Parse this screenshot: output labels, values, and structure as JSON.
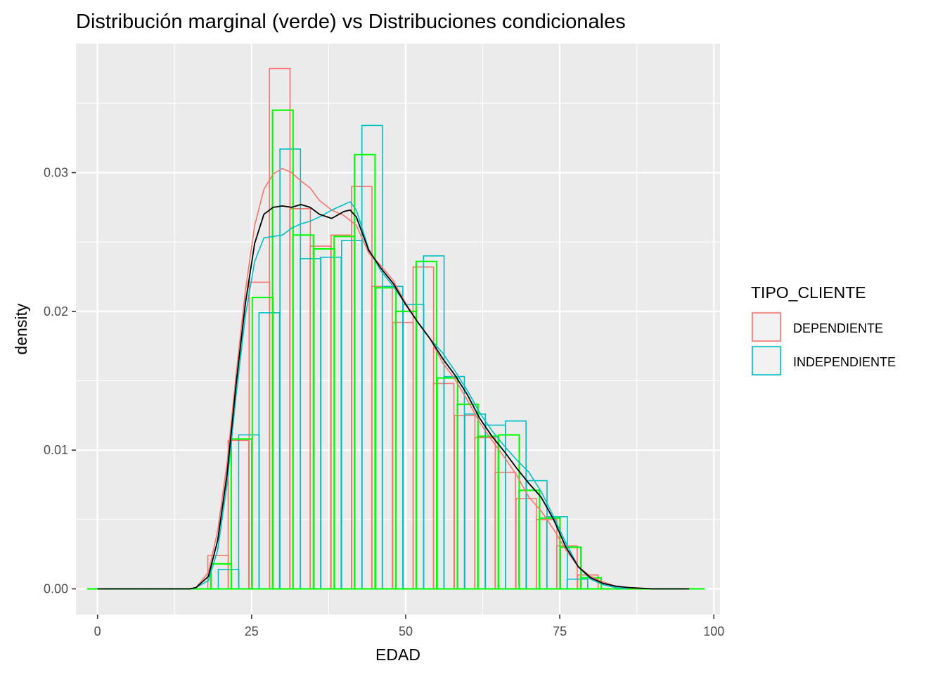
{
  "chart_data": {
    "type": "bar",
    "subtype": "histogram with density overlays",
    "title": "Distribución marginal (verde) vs Distribuciones condicionales",
    "xlabel": "EDAD",
    "ylabel": "density",
    "xlim": [
      -3.5,
      101
    ],
    "ylim": [
      -0.00185,
      0.0393
    ],
    "x_ticks": [
      0,
      25,
      50,
      75,
      100
    ],
    "x_tick_labels": [
      "0",
      "25",
      "50",
      "75",
      "100"
    ],
    "y_ticks": [
      0.0,
      0.01,
      0.02,
      0.03
    ],
    "y_tick_labels": [
      "0.00",
      "0.01",
      "0.02",
      "0.03"
    ],
    "bin_width": 3.33,
    "grid": true,
    "legend": {
      "title": "TIPO_CLIENTE",
      "position": "right",
      "entries": [
        {
          "name": "DEPENDIENTE",
          "color": "#F8766D"
        },
        {
          "name": "INDEPENDIENTE",
          "color": "#00BFC4"
        }
      ]
    },
    "colors": {
      "DEPENDIENTE": "#F8766D",
      "INDEPENDIENTE": "#00BFC4",
      "marginal": "#00FF00",
      "marginal_density": "#000000",
      "panel": "#EBEBEB",
      "grid": "#FFFFFF"
    },
    "series": [
      {
        "name": "DEPENDIENTE",
        "kind": "histogram",
        "bin_starts": [
          17.9,
          21.2,
          24.6,
          27.9,
          31.2,
          34.5,
          37.9,
          41.2,
          44.5,
          47.9,
          51.2,
          54.5,
          57.9,
          61.2,
          64.5,
          67.9,
          71.2,
          74.5,
          77.9
        ],
        "values": [
          0.0024,
          0.0107,
          0.0221,
          0.0375,
          0.0274,
          0.0247,
          0.0255,
          0.029,
          0.0218,
          0.0192,
          0.0232,
          0.0148,
          0.0125,
          0.0109,
          0.0084,
          0.0065,
          0.005,
          0.0031,
          0.001
        ]
      },
      {
        "name": "INDEPENDIENTE",
        "kind": "histogram",
        "bin_starts": [
          19.6,
          22.9,
          26.2,
          29.6,
          32.9,
          36.2,
          39.6,
          42.9,
          46.2,
          49.6,
          52.9,
          56.2,
          59.6,
          62.9,
          66.2,
          69.6,
          72.9,
          76.2
        ],
        "values": [
          0.0014,
          0.0111,
          0.0199,
          0.0317,
          0.0238,
          0.0239,
          0.0251,
          0.0334,
          0.0218,
          0.0205,
          0.024,
          0.0153,
          0.0126,
          0.0118,
          0.0121,
          0.0078,
          0.0052,
          0.0007
        ]
      },
      {
        "name": "marginal",
        "kind": "histogram",
        "bin_starts": [
          -1.6,
          1.7,
          5.1,
          8.4,
          11.7,
          15.1,
          18.4,
          21.7,
          25.1,
          28.4,
          31.7,
          35.1,
          38.4,
          41.7,
          45.1,
          48.4,
          51.7,
          55.1,
          58.4,
          61.7,
          65.1,
          68.4,
          71.7,
          75.1,
          78.4,
          81.7,
          85.1,
          88.4,
          91.7,
          95.1
        ],
        "values": [
          0,
          0,
          0,
          0,
          0,
          0,
          0.0018,
          0.0108,
          0.021,
          0.0345,
          0.0255,
          0.0245,
          0.0254,
          0.0313,
          0.0217,
          0.02,
          0.0236,
          0.0152,
          0.0133,
          0.011,
          0.0111,
          0.0071,
          0.0051,
          0.003,
          0.0008,
          0,
          0,
          0,
          0,
          0
        ]
      },
      {
        "name": "DEPENDIENTE",
        "kind": "density",
        "x": [
          16,
          18,
          19.5,
          21,
          22.5,
          24,
          25.5,
          27,
          28.5,
          30,
          31.5,
          33,
          34.5,
          36,
          38,
          40,
          42,
          44,
          46,
          48,
          50,
          52,
          54,
          56,
          58,
          60,
          62,
          64,
          66,
          68,
          70,
          72,
          74,
          76,
          78,
          80,
          82,
          84,
          86,
          88
        ],
        "values": [
          0.0001,
          0.0012,
          0.0042,
          0.009,
          0.0155,
          0.0215,
          0.0262,
          0.0288,
          0.0299,
          0.0303,
          0.03,
          0.0294,
          0.0289,
          0.028,
          0.0273,
          0.0269,
          0.0262,
          0.0242,
          0.0233,
          0.0222,
          0.0206,
          0.0192,
          0.018,
          0.0163,
          0.0151,
          0.0136,
          0.012,
          0.0107,
          0.0095,
          0.0082,
          0.0066,
          0.0056,
          0.0043,
          0.0028,
          0.0016,
          0.0009,
          0.0005,
          0.0002,
          0.0001,
          0
        ]
      },
      {
        "name": "INDEPENDIENTE",
        "kind": "density",
        "x": [
          16,
          18,
          19.5,
          21,
          22.5,
          24,
          25.5,
          27,
          28.5,
          30,
          31.5,
          33,
          34.5,
          36,
          38,
          40,
          41,
          42,
          44,
          46,
          48,
          50,
          52,
          54,
          56,
          58,
          60,
          62,
          64,
          66,
          68,
          70,
          72,
          74,
          76,
          78,
          80,
          82,
          84,
          86
        ],
        "values": [
          0.0001,
          0.0006,
          0.0028,
          0.0075,
          0.014,
          0.0197,
          0.0236,
          0.0253,
          0.0254,
          0.0255,
          0.026,
          0.0263,
          0.0265,
          0.0268,
          0.0273,
          0.0277,
          0.0279,
          0.0273,
          0.0245,
          0.0229,
          0.0218,
          0.0205,
          0.0192,
          0.018,
          0.017,
          0.0157,
          0.0143,
          0.0127,
          0.0114,
          0.0103,
          0.0093,
          0.0084,
          0.007,
          0.0052,
          0.0033,
          0.0016,
          0.0007,
          0.0003,
          0.0001,
          0
        ]
      },
      {
        "name": "marginal",
        "kind": "density",
        "x": [
          0,
          5,
          10,
          15,
          16,
          18,
          19.5,
          21,
          22.5,
          24,
          25.5,
          27,
          28.5,
          30,
          31.5,
          33,
          34.5,
          36,
          38,
          40,
          41,
          42,
          44,
          46,
          48,
          50,
          52,
          54,
          56,
          58,
          60,
          62,
          64,
          66,
          68,
          70,
          72,
          74,
          76,
          78,
          80,
          82,
          84,
          86,
          90,
          96
        ],
        "values": [
          0,
          0,
          0,
          0,
          0.0001,
          0.0009,
          0.0035,
          0.0082,
          0.0148,
          0.0206,
          0.0249,
          0.027,
          0.0275,
          0.0276,
          0.0275,
          0.0277,
          0.0275,
          0.027,
          0.0267,
          0.0272,
          0.0273,
          0.0268,
          0.0244,
          0.0231,
          0.022,
          0.0205,
          0.0192,
          0.018,
          0.0166,
          0.0154,
          0.014,
          0.0123,
          0.011,
          0.0099,
          0.0087,
          0.0076,
          0.0066,
          0.005,
          0.003,
          0.0016,
          0.0008,
          0.0004,
          0.0002,
          0.0001,
          0,
          0
        ]
      }
    ]
  }
}
